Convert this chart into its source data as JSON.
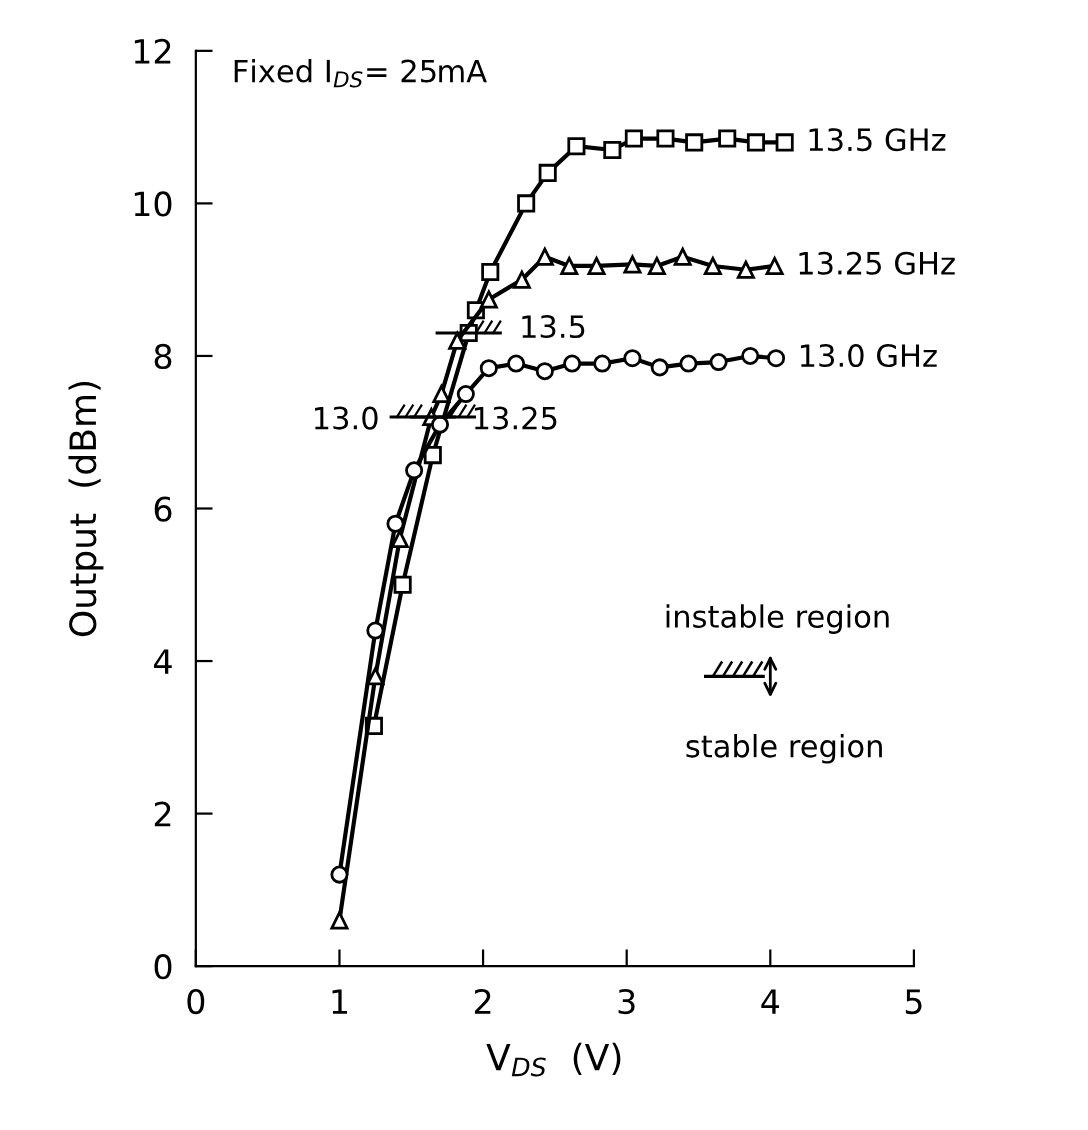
{
  "chart_data": {
    "type": "line",
    "xlabel": "V$_{DS}$  (V)",
    "ylabel": "Output  (dBm)",
    "xlim": [
      0,
      5
    ],
    "ylim": [
      0,
      12
    ],
    "xticks": [
      0,
      1,
      2,
      3,
      4,
      5
    ],
    "yticks": [
      0,
      2,
      4,
      6,
      8,
      10,
      12
    ],
    "grid": false,
    "legend": false,
    "line_style": "solid",
    "series": [
      {
        "name": "13.5 GHz",
        "color": "#000000",
        "marker": "square",
        "x": [
          1.24,
          1.44,
          1.65,
          1.9,
          1.95,
          2.05,
          2.3,
          2.45,
          2.65,
          2.9,
          3.05,
          3.27,
          3.47,
          3.7,
          3.9,
          4.1
        ],
        "values": [
          3.15,
          5.0,
          6.7,
          8.3,
          8.6,
          9.1,
          10.0,
          10.4,
          10.75,
          10.7,
          10.85,
          10.85,
          10.8,
          10.85,
          10.8,
          10.8
        ]
      },
      {
        "name": "13.25 GHz",
        "color": "#000000",
        "marker": "triangle",
        "x": [
          1.0,
          1.25,
          1.42,
          1.64,
          1.71,
          1.82,
          2.04,
          2.27,
          2.43,
          2.6,
          2.79,
          3.04,
          3.21,
          3.39,
          3.6,
          3.83,
          4.03
        ],
        "values": [
          0.6,
          3.8,
          5.6,
          7.2,
          7.5,
          8.2,
          8.74,
          9.0,
          9.3,
          9.18,
          9.18,
          9.2,
          9.18,
          9.3,
          9.18,
          9.13,
          9.18
        ]
      },
      {
        "name": "13.0 GHz",
        "color": "#000000",
        "marker": "circle",
        "x": [
          1.0,
          1.25,
          1.39,
          1.52,
          1.7,
          1.88,
          2.04,
          2.23,
          2.43,
          2.62,
          2.83,
          3.04,
          3.23,
          3.43,
          3.64,
          3.86,
          4.04
        ],
        "values": [
          1.2,
          4.4,
          5.8,
          6.5,
          7.1,
          7.5,
          7.84,
          7.9,
          7.8,
          7.9,
          7.9,
          7.97,
          7.85,
          7.9,
          7.92,
          8.0,
          7.97
        ]
      }
    ],
    "annotations": [
      "Fixed I$_{DS}$= 25mA",
      {
        "text": "13.5",
        "x": 1.9,
        "y": 8.3
      },
      {
        "text": "13.25",
        "x": 1.72,
        "y": 7.2
      },
      {
        "text": "13.0",
        "x": 1.58,
        "y": 7.2
      },
      "instable region",
      "stable region"
    ]
  }
}
